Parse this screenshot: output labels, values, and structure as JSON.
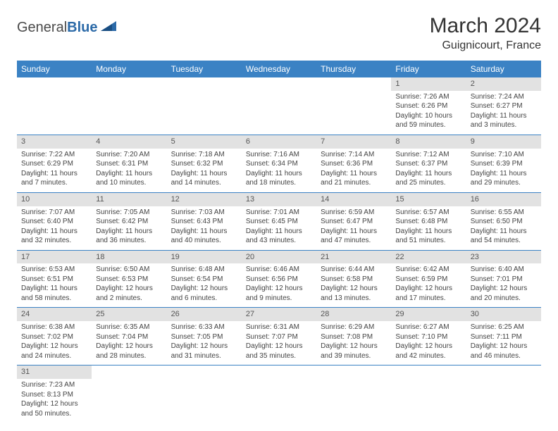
{
  "logo": {
    "word1": "General",
    "word2": "Blue"
  },
  "header": {
    "month": "March 2024",
    "location": "Guignicourt, France"
  },
  "colors": {
    "header_bg": "#3b82c4",
    "header_text": "#ffffff",
    "daynum_bg": "#e2e2e2",
    "row_border": "#3b82c4",
    "logo_blue": "#2c6aa8"
  },
  "day_labels": [
    "Sunday",
    "Monday",
    "Tuesday",
    "Wednesday",
    "Thursday",
    "Friday",
    "Saturday"
  ],
  "weeks": [
    [
      {
        "n": "",
        "sr": "",
        "ss": "",
        "dl": ""
      },
      {
        "n": "",
        "sr": "",
        "ss": "",
        "dl": ""
      },
      {
        "n": "",
        "sr": "",
        "ss": "",
        "dl": ""
      },
      {
        "n": "",
        "sr": "",
        "ss": "",
        "dl": ""
      },
      {
        "n": "",
        "sr": "",
        "ss": "",
        "dl": ""
      },
      {
        "n": "1",
        "sr": "Sunrise: 7:26 AM",
        "ss": "Sunset: 6:26 PM",
        "dl": "Daylight: 10 hours and 59 minutes."
      },
      {
        "n": "2",
        "sr": "Sunrise: 7:24 AM",
        "ss": "Sunset: 6:27 PM",
        "dl": "Daylight: 11 hours and 3 minutes."
      }
    ],
    [
      {
        "n": "3",
        "sr": "Sunrise: 7:22 AM",
        "ss": "Sunset: 6:29 PM",
        "dl": "Daylight: 11 hours and 7 minutes."
      },
      {
        "n": "4",
        "sr": "Sunrise: 7:20 AM",
        "ss": "Sunset: 6:31 PM",
        "dl": "Daylight: 11 hours and 10 minutes."
      },
      {
        "n": "5",
        "sr": "Sunrise: 7:18 AM",
        "ss": "Sunset: 6:32 PM",
        "dl": "Daylight: 11 hours and 14 minutes."
      },
      {
        "n": "6",
        "sr": "Sunrise: 7:16 AM",
        "ss": "Sunset: 6:34 PM",
        "dl": "Daylight: 11 hours and 18 minutes."
      },
      {
        "n": "7",
        "sr": "Sunrise: 7:14 AM",
        "ss": "Sunset: 6:36 PM",
        "dl": "Daylight: 11 hours and 21 minutes."
      },
      {
        "n": "8",
        "sr": "Sunrise: 7:12 AM",
        "ss": "Sunset: 6:37 PM",
        "dl": "Daylight: 11 hours and 25 minutes."
      },
      {
        "n": "9",
        "sr": "Sunrise: 7:10 AM",
        "ss": "Sunset: 6:39 PM",
        "dl": "Daylight: 11 hours and 29 minutes."
      }
    ],
    [
      {
        "n": "10",
        "sr": "Sunrise: 7:07 AM",
        "ss": "Sunset: 6:40 PM",
        "dl": "Daylight: 11 hours and 32 minutes."
      },
      {
        "n": "11",
        "sr": "Sunrise: 7:05 AM",
        "ss": "Sunset: 6:42 PM",
        "dl": "Daylight: 11 hours and 36 minutes."
      },
      {
        "n": "12",
        "sr": "Sunrise: 7:03 AM",
        "ss": "Sunset: 6:43 PM",
        "dl": "Daylight: 11 hours and 40 minutes."
      },
      {
        "n": "13",
        "sr": "Sunrise: 7:01 AM",
        "ss": "Sunset: 6:45 PM",
        "dl": "Daylight: 11 hours and 43 minutes."
      },
      {
        "n": "14",
        "sr": "Sunrise: 6:59 AM",
        "ss": "Sunset: 6:47 PM",
        "dl": "Daylight: 11 hours and 47 minutes."
      },
      {
        "n": "15",
        "sr": "Sunrise: 6:57 AM",
        "ss": "Sunset: 6:48 PM",
        "dl": "Daylight: 11 hours and 51 minutes."
      },
      {
        "n": "16",
        "sr": "Sunrise: 6:55 AM",
        "ss": "Sunset: 6:50 PM",
        "dl": "Daylight: 11 hours and 54 minutes."
      }
    ],
    [
      {
        "n": "17",
        "sr": "Sunrise: 6:53 AM",
        "ss": "Sunset: 6:51 PM",
        "dl": "Daylight: 11 hours and 58 minutes."
      },
      {
        "n": "18",
        "sr": "Sunrise: 6:50 AM",
        "ss": "Sunset: 6:53 PM",
        "dl": "Daylight: 12 hours and 2 minutes."
      },
      {
        "n": "19",
        "sr": "Sunrise: 6:48 AM",
        "ss": "Sunset: 6:54 PM",
        "dl": "Daylight: 12 hours and 6 minutes."
      },
      {
        "n": "20",
        "sr": "Sunrise: 6:46 AM",
        "ss": "Sunset: 6:56 PM",
        "dl": "Daylight: 12 hours and 9 minutes."
      },
      {
        "n": "21",
        "sr": "Sunrise: 6:44 AM",
        "ss": "Sunset: 6:58 PM",
        "dl": "Daylight: 12 hours and 13 minutes."
      },
      {
        "n": "22",
        "sr": "Sunrise: 6:42 AM",
        "ss": "Sunset: 6:59 PM",
        "dl": "Daylight: 12 hours and 17 minutes."
      },
      {
        "n": "23",
        "sr": "Sunrise: 6:40 AM",
        "ss": "Sunset: 7:01 PM",
        "dl": "Daylight: 12 hours and 20 minutes."
      }
    ],
    [
      {
        "n": "24",
        "sr": "Sunrise: 6:38 AM",
        "ss": "Sunset: 7:02 PM",
        "dl": "Daylight: 12 hours and 24 minutes."
      },
      {
        "n": "25",
        "sr": "Sunrise: 6:35 AM",
        "ss": "Sunset: 7:04 PM",
        "dl": "Daylight: 12 hours and 28 minutes."
      },
      {
        "n": "26",
        "sr": "Sunrise: 6:33 AM",
        "ss": "Sunset: 7:05 PM",
        "dl": "Daylight: 12 hours and 31 minutes."
      },
      {
        "n": "27",
        "sr": "Sunrise: 6:31 AM",
        "ss": "Sunset: 7:07 PM",
        "dl": "Daylight: 12 hours and 35 minutes."
      },
      {
        "n": "28",
        "sr": "Sunrise: 6:29 AM",
        "ss": "Sunset: 7:08 PM",
        "dl": "Daylight: 12 hours and 39 minutes."
      },
      {
        "n": "29",
        "sr": "Sunrise: 6:27 AM",
        "ss": "Sunset: 7:10 PM",
        "dl": "Daylight: 12 hours and 42 minutes."
      },
      {
        "n": "30",
        "sr": "Sunrise: 6:25 AM",
        "ss": "Sunset: 7:11 PM",
        "dl": "Daylight: 12 hours and 46 minutes."
      }
    ],
    [
      {
        "n": "31",
        "sr": "Sunrise: 7:23 AM",
        "ss": "Sunset: 8:13 PM",
        "dl": "Daylight: 12 hours and 50 minutes."
      },
      {
        "n": "",
        "sr": "",
        "ss": "",
        "dl": ""
      },
      {
        "n": "",
        "sr": "",
        "ss": "",
        "dl": ""
      },
      {
        "n": "",
        "sr": "",
        "ss": "",
        "dl": ""
      },
      {
        "n": "",
        "sr": "",
        "ss": "",
        "dl": ""
      },
      {
        "n": "",
        "sr": "",
        "ss": "",
        "dl": ""
      },
      {
        "n": "",
        "sr": "",
        "ss": "",
        "dl": ""
      }
    ]
  ]
}
